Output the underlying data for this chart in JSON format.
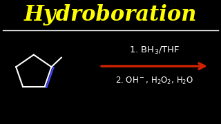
{
  "background_color": "#000000",
  "title": "Hydroboration",
  "title_color": "#ffff00",
  "title_fontsize": 22,
  "divider_color": "#ffffff",
  "step1_text": "1. BH$_3$/THF",
  "step2_text": "2. OH$^-$, H$_2$O$_2$, H$_2$O",
  "reaction_text_color": "#ffffff",
  "arrow_color": "#cc2200",
  "cyclopentane_color": "#ffffff",
  "double_bond_color": "#4444ff",
  "methyl_color": "#ffffff"
}
